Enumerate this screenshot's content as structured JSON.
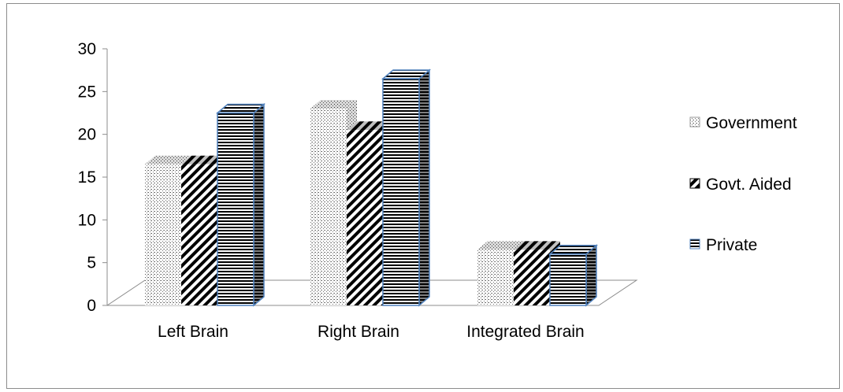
{
  "chart_data": {
    "type": "bar",
    "variant": "3d-clustered-column",
    "categories": [
      "Left Brain",
      "Right Brain",
      "Integrated Brain"
    ],
    "series": [
      {
        "name": "Government",
        "values": [
          16.5,
          23,
          6.5
        ],
        "pattern": "dots"
      },
      {
        "name": "Govt. Aided",
        "values": [
          16.5,
          20.5,
          6.5
        ],
        "pattern": "diagonal"
      },
      {
        "name": "Private",
        "values": [
          22.5,
          26.5,
          6
        ],
        "pattern": "horizontal"
      }
    ],
    "yticks": [
      "0",
      "5",
      "10",
      "15",
      "20",
      "25",
      "30"
    ],
    "ylim": [
      0,
      30
    ],
    "grid": false,
    "legend_position": "right",
    "colors": {
      "frame": "#8c8c8c",
      "axis": "#8c8c8c",
      "private_edge": "#4f81bd",
      "pattern_ink": "#000000"
    }
  }
}
